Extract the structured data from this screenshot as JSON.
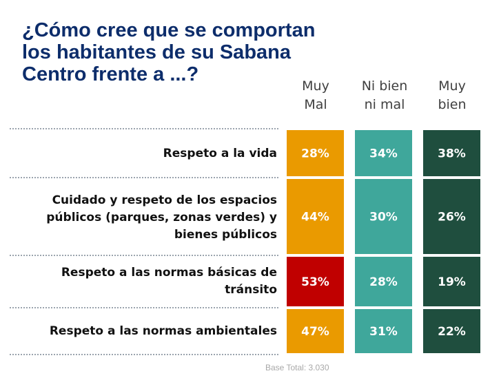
{
  "title_lines": [
    "¿Cómo cree que se comportan",
    "los habitantes de su Sabana",
    "Centro frente a ...?"
  ],
  "columns": [
    {
      "line1": "Muy",
      "line2": "Mal"
    },
    {
      "line1": "Ni bien",
      "line2": "ni mal"
    },
    {
      "line1": "Muy",
      "line2": "bien"
    }
  ],
  "rows": [
    {
      "lines": [
        "Respeto a la vida"
      ],
      "values": [
        "28%",
        "34%",
        "38%"
      ]
    },
    {
      "lines": [
        "Cuidado y respeto de los espacios",
        "públicos (parques, zonas verdes) y",
        "bienes públicos"
      ],
      "values": [
        "44%",
        "30%",
        "26%"
      ]
    },
    {
      "lines": [
        "Respeto a las normas básicas de",
        "tránsito"
      ],
      "values": [
        "53%",
        "28%",
        "19%"
      ]
    },
    {
      "lines": [
        "Respeto a las normas ambientales"
      ],
      "values": [
        "47%",
        "31%",
        "22%"
      ]
    }
  ],
  "colors": {
    "muy_mal": "#ea9a00",
    "muy_mal_highlight": "#c00000",
    "ni_bien": "#3fa79b",
    "muy_bien": "#1f4e3e",
    "title": "#0d2d6b"
  },
  "chart_data": {
    "type": "table",
    "title": "¿Cómo cree que se comportan los habitantes de su Sabana Centro frente a ...?",
    "categories": [
      "Respeto a la vida",
      "Cuidado y respeto de los espacios públicos (parques, zonas verdes) y bienes públicos",
      "Respeto a las normas básicas de tránsito",
      "Respeto a las normas ambientales"
    ],
    "series": [
      {
        "name": "Muy Mal",
        "values": [
          28,
          44,
          53,
          47
        ]
      },
      {
        "name": "Ni bien ni mal",
        "values": [
          34,
          30,
          28,
          31
        ]
      },
      {
        "name": "Muy bien",
        "values": [
          38,
          26,
          19,
          22
        ]
      }
    ],
    "highlight": {
      "series": "Muy Mal",
      "category_index": 2
    },
    "unit": "%"
  },
  "base_note": "Base Total: 3.030"
}
